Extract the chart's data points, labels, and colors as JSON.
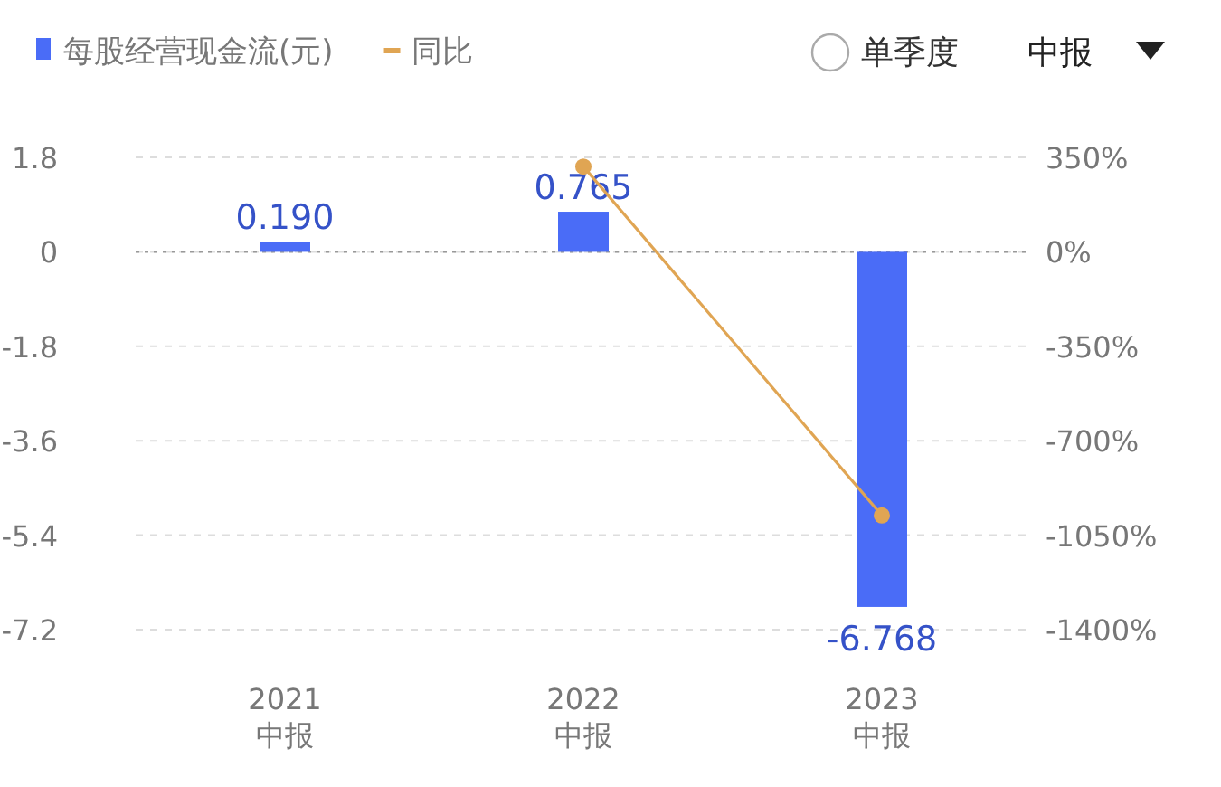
{
  "chart_data": {
    "type": "bar",
    "categories": [
      "2021\n中报",
      "2022\n中报",
      "2023\n中报"
    ],
    "series": [
      {
        "name": "每股经营现金流(元)",
        "color": "#4a6cf7",
        "values": [
          0.19,
          0.765,
          -6.768
        ],
        "value_labels": [
          "0.190",
          "0.765",
          "-6.768"
        ]
      },
      {
        "name": "同比",
        "type": "line",
        "axis": "y2",
        "color": "#e0a553",
        "marker": "circle",
        "values": [
          null,
          316,
          -977
        ]
      }
    ],
    "ylim": [
      -7.2,
      1.8
    ],
    "yticks": [
      1.8,
      0,
      -1.8,
      -3.6,
      -5.4,
      -7.2
    ],
    "y2lim": [
      -1400,
      350
    ],
    "y2ticks": [
      {
        "value": 350,
        "label": "350%"
      },
      {
        "value": 0,
        "label": "0%"
      },
      {
        "value": -350,
        "label": "-350%"
      },
      {
        "value": -700,
        "label": "-700%"
      },
      {
        "value": -1050,
        "label": "-1050%"
      },
      {
        "value": -1400,
        "label": "-1400%"
      }
    ],
    "grid": "y",
    "ref_lines": [
      {
        "axis": "y",
        "value": 0,
        "color": "#999999",
        "line_style": "dotted"
      }
    ],
    "legend": "top left",
    "annotations": [
      "单季度",
      "中报"
    ]
  }
}
